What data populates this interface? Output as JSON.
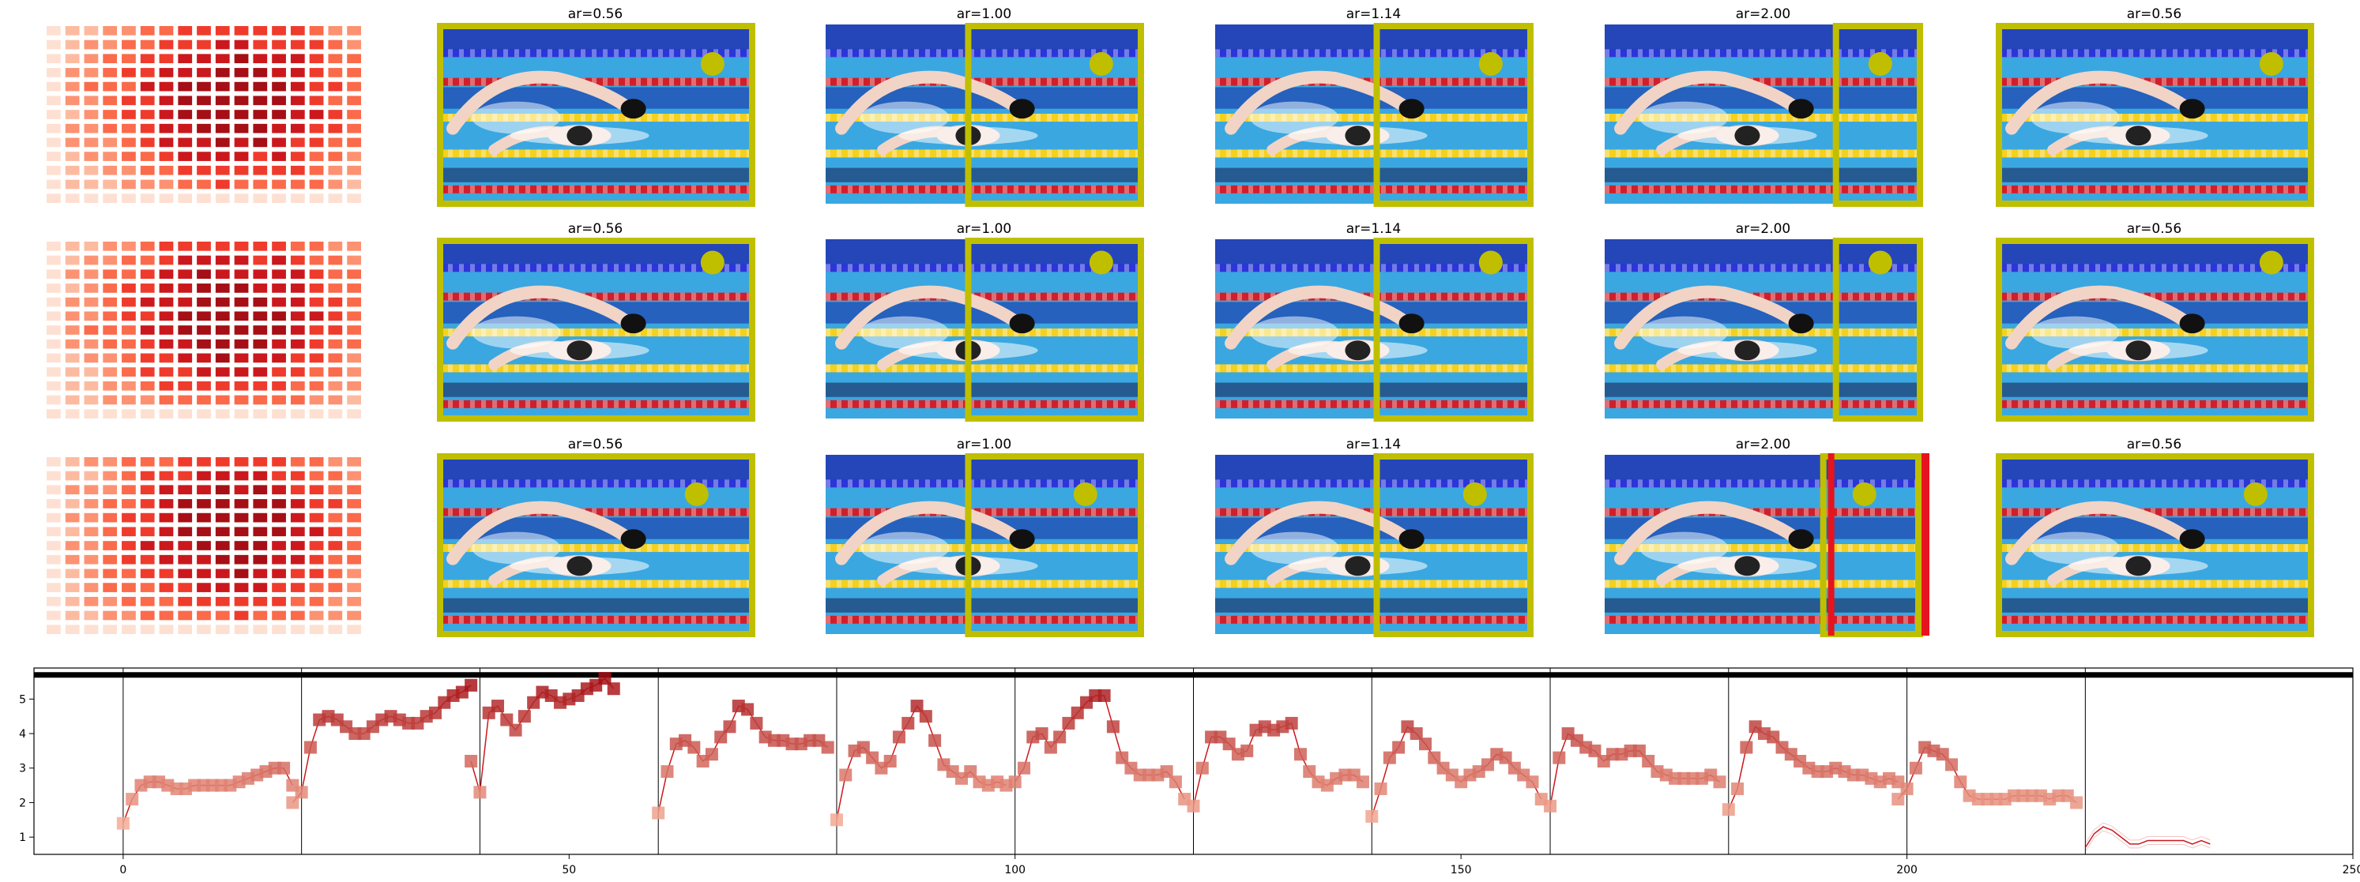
{
  "figure": {
    "rows": [
      {
        "panels": [
          {
            "title": "ar=0.56",
            "circle": [
              0.87,
              0.22
            ],
            "box": [
              0.0,
              0.0,
              1.0,
              1.0
            ],
            "red_marker": false
          },
          {
            "title": "ar=1.00",
            "circle": [
              0.87,
              0.22
            ],
            "box": [
              0.44,
              0.0,
              1.0,
              1.0
            ],
            "red_marker": false
          },
          {
            "title": "ar=1.14",
            "circle": [
              0.87,
              0.22
            ],
            "box": [
              0.5,
              0.0,
              1.0,
              1.0
            ],
            "red_marker": false
          },
          {
            "title": "ar=2.00",
            "circle": [
              0.87,
              0.22
            ],
            "box": [
              0.72,
              0.0,
              1.0,
              1.0
            ],
            "red_marker": false
          },
          {
            "title": "ar=0.56",
            "circle": [
              0.87,
              0.22
            ],
            "box": [
              0.0,
              0.0,
              1.0,
              1.0
            ],
            "red_marker": false
          }
        ]
      },
      {
        "panels": [
          {
            "title": "ar=0.56",
            "circle": [
              0.87,
              0.13
            ],
            "box": [
              0.0,
              0.0,
              1.0,
              1.0
            ],
            "red_marker": false
          },
          {
            "title": "ar=1.00",
            "circle": [
              0.87,
              0.13
            ],
            "box": [
              0.44,
              0.0,
              1.0,
              1.0
            ],
            "red_marker": false
          },
          {
            "title": "ar=1.14",
            "circle": [
              0.87,
              0.13
            ],
            "box": [
              0.5,
              0.0,
              1.0,
              1.0
            ],
            "red_marker": false
          },
          {
            "title": "ar=2.00",
            "circle": [
              0.87,
              0.13
            ],
            "box": [
              0.72,
              0.0,
              1.0,
              1.0
            ],
            "red_marker": false
          },
          {
            "title": "ar=0.56",
            "circle": [
              0.87,
              0.13
            ],
            "box": [
              0.0,
              0.0,
              1.0,
              1.0
            ],
            "red_marker": false
          }
        ]
      },
      {
        "panels": [
          {
            "title": "ar=0.56",
            "circle": [
              0.82,
              0.22
            ],
            "box": [
              0.0,
              0.0,
              1.0,
              1.0
            ],
            "red_marker": false
          },
          {
            "title": "ar=1.00",
            "circle": [
              0.82,
              0.22
            ],
            "box": [
              0.44,
              0.0,
              1.0,
              1.0
            ],
            "red_marker": false
          },
          {
            "title": "ar=1.14",
            "circle": [
              0.82,
              0.22
            ],
            "box": [
              0.5,
              0.0,
              1.0,
              1.0
            ],
            "red_marker": false
          },
          {
            "title": "ar=2.00",
            "circle": [
              0.82,
              0.22
            ],
            "box": [
              0.68,
              0.0,
              1.0,
              1.0
            ],
            "red_marker": true
          },
          {
            "title": "ar=0.56",
            "circle": [
              0.82,
              0.22
            ],
            "box": [
              0.0,
              0.0,
              1.0,
              1.0
            ],
            "red_marker": false
          }
        ]
      }
    ],
    "heatmap": {
      "rows": 13,
      "cols": 17,
      "cmap": [
        "#fee0d2",
        "#fcbba1",
        "#fc9272",
        "#fb6a4a",
        "#ef3b2c",
        "#cb181d",
        "#a50f15"
      ]
    }
  },
  "colors": {
    "box": "#bfbf00",
    "circle": "#bfbf00",
    "red_marker": "#e6141e",
    "line": "#cb181d",
    "marker_low": "#fcbba1",
    "marker_high": "#a50f15",
    "water": "#3aa7e0",
    "lane_blue": "#2a36d8",
    "lane_yellow": "#f5d01e",
    "lane_red": "#d01f2a"
  },
  "chart_data": {
    "type": "line",
    "xlim": [
      -10,
      250
    ],
    "ylim": [
      0.5,
      5.9
    ],
    "xticks": [
      0,
      50,
      100,
      150,
      200,
      250
    ],
    "yticks": [
      1,
      2,
      3,
      4,
      5
    ],
    "hline": 5.7,
    "vlines": [
      0,
      20,
      40,
      60,
      80,
      100,
      120,
      140,
      160,
      180,
      200,
      220
    ],
    "segments": [
      {
        "x0": 0,
        "y": [
          1.4,
          2.1,
          2.5,
          2.6,
          2.6,
          2.5,
          2.4,
          2.4,
          2.5,
          2.5,
          2.5,
          2.5,
          2.5,
          2.6,
          2.7,
          2.8,
          2.9,
          3.0,
          3.0,
          2.5
        ]
      },
      {
        "x0": 19,
        "y": [
          2.0,
          2.3,
          3.6,
          4.4,
          4.5,
          4.4,
          4.2,
          4.0,
          4.0,
          4.2,
          4.4,
          4.5,
          4.4,
          4.3,
          4.3,
          4.5,
          4.6,
          4.9,
          5.1,
          5.2,
          5.4
        ]
      },
      {
        "x0": 39,
        "y": [
          3.2,
          2.3,
          4.6,
          4.8,
          4.4,
          4.1,
          4.5,
          4.9,
          5.2,
          5.1,
          4.9,
          5.0,
          5.1,
          5.3,
          5.4,
          5.6,
          5.3
        ]
      },
      {
        "x0": 60,
        "y": [
          1.7,
          2.9,
          3.7,
          3.8,
          3.6,
          3.2,
          3.4,
          3.9,
          4.2,
          4.8,
          4.7,
          4.3,
          3.9,
          3.8,
          3.8,
          3.7,
          3.7,
          3.8,
          3.8,
          3.6
        ]
      },
      {
        "x0": 80,
        "y": [
          1.5,
          2.8,
          3.5,
          3.6,
          3.3,
          3.0,
          3.2,
          3.9,
          4.3,
          4.8,
          4.5,
          3.8,
          3.1,
          2.9,
          2.7,
          2.9,
          2.6,
          2.5,
          2.6,
          2.5
        ]
      },
      {
        "x0": 100,
        "y": [
          2.6,
          3.0,
          3.9,
          4.0,
          3.6,
          3.9,
          4.3,
          4.6,
          4.9,
          5.1,
          5.1,
          4.2,
          3.3,
          3.0,
          2.8,
          2.8,
          2.8,
          2.9,
          2.6,
          2.1
        ]
      },
      {
        "x0": 120,
        "y": [
          1.9,
          3.0,
          3.9,
          3.9,
          3.7,
          3.4,
          3.5,
          4.1,
          4.2,
          4.1,
          4.2,
          4.3,
          3.4,
          2.9,
          2.6,
          2.5,
          2.7,
          2.8,
          2.8,
          2.6
        ]
      },
      {
        "x0": 140,
        "y": [
          1.6,
          2.4,
          3.3,
          3.6,
          4.2,
          4.0,
          3.7,
          3.3,
          3.0,
          2.8,
          2.6,
          2.8,
          2.9,
          3.1,
          3.4,
          3.3,
          3.0,
          2.8,
          2.6,
          2.1
        ]
      },
      {
        "x0": 160,
        "y": [
          1.9,
          3.3,
          4.0,
          3.8,
          3.6,
          3.5,
          3.2,
          3.4,
          3.4,
          3.5,
          3.5,
          3.2,
          2.9,
          2.8,
          2.7,
          2.7,
          2.7,
          2.7,
          2.8,
          2.6
        ]
      },
      {
        "x0": 180,
        "y": [
          1.8,
          2.4,
          3.6,
          4.2,
          4.0,
          3.9,
          3.6,
          3.4,
          3.2,
          3.0,
          2.9,
          2.9,
          3.0,
          2.9,
          2.8,
          2.8,
          2.7,
          2.6,
          2.7,
          2.6
        ]
      },
      {
        "x0": 199,
        "y": [
          2.1,
          2.4,
          3.0,
          3.6,
          3.5,
          3.4,
          3.1,
          2.6,
          2.2,
          2.1,
          2.1,
          2.1,
          2.1,
          2.2,
          2.2,
          2.2,
          2.2,
          2.1,
          2.2,
          2.2,
          2.0
        ]
      },
      {
        "x0": 220,
        "y": [
          0.7,
          1.1,
          1.3,
          1.2,
          1.0,
          0.8,
          0.8,
          0.9,
          0.9,
          0.9,
          0.9,
          0.9,
          0.8,
          0.9,
          0.8
        ],
        "markers": false
      }
    ]
  }
}
